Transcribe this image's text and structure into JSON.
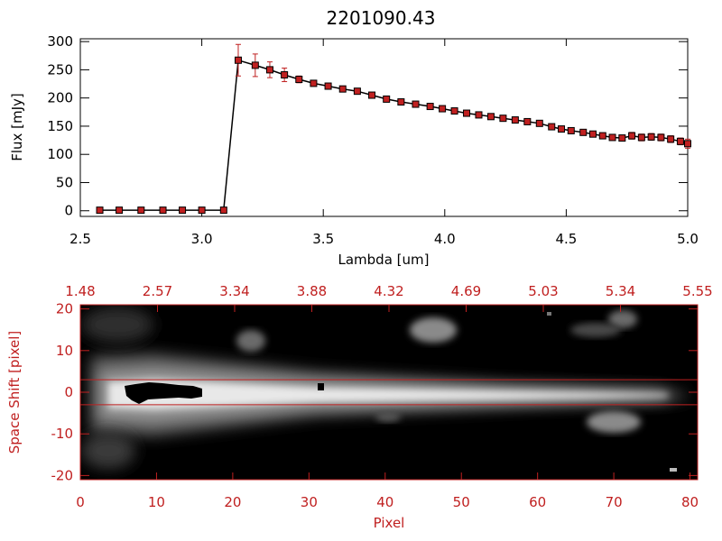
{
  "chart_data": [
    {
      "type": "line",
      "title": "2201090.43",
      "xlabel": "Lambda [um]",
      "ylabel": "Flux [mJy]",
      "xlim": [
        2.5,
        5.0
      ],
      "ylim": [
        -10,
        305
      ],
      "xticks": [
        "2.5",
        "3.0",
        "3.5",
        "4.0",
        "4.5",
        "5.0"
      ],
      "yticks": [
        "0",
        "50",
        "100",
        "150",
        "200",
        "250",
        "300"
      ],
      "x": [
        2.58,
        2.66,
        2.75,
        2.84,
        2.92,
        3.0,
        3.09,
        3.15,
        3.22,
        3.28,
        3.34,
        3.4,
        3.46,
        3.52,
        3.58,
        3.64,
        3.7,
        3.76,
        3.82,
        3.88,
        3.94,
        3.99,
        4.04,
        4.09,
        4.14,
        4.19,
        4.24,
        4.29,
        4.34,
        4.39,
        4.44,
        4.48,
        4.52,
        4.57,
        4.61,
        4.65,
        4.69,
        4.73,
        4.77,
        4.81,
        4.85,
        4.89,
        4.93,
        4.97,
        5.0
      ],
      "y": [
        1,
        1,
        1,
        1,
        1,
        1,
        1,
        267,
        258,
        250,
        241,
        233,
        226,
        221,
        216,
        212,
        205,
        198,
        193,
        189,
        185,
        181,
        177,
        173,
        170,
        167,
        164,
        161,
        158,
        155,
        149,
        145,
        142,
        139,
        136,
        133,
        130,
        129,
        133,
        130,
        131,
        130,
        127,
        123,
        119
      ],
      "yerr": [
        0,
        0,
        0,
        0,
        0,
        0,
        0,
        28,
        20,
        14,
        12,
        6,
        5,
        5,
        4,
        4,
        4,
        4,
        4,
        4,
        4,
        4,
        4,
        4,
        4,
        4,
        4,
        4,
        4,
        4,
        4,
        4,
        4,
        4,
        4,
        4,
        4,
        4,
        6,
        6,
        6,
        6,
        6,
        6,
        8
      ],
      "marker_color": "#c02020",
      "line_color": "#000000"
    },
    {
      "type": "heatmap",
      "xlabel": "Pixel",
      "ylabel": "Space Shift [pixel]",
      "xlim": [
        0,
        81
      ],
      "ylim": [
        -21,
        21
      ],
      "xticks": [
        "0",
        "10",
        "20",
        "30",
        "40",
        "50",
        "60",
        "70",
        "80"
      ],
      "yticks": [
        "-20",
        "-10",
        "0",
        "10",
        "20"
      ],
      "top_axis_ticks": [
        "1.48",
        "2.57",
        "3.34",
        "3.88",
        "4.32",
        "4.69",
        "5.03",
        "5.34",
        "5.55"
      ],
      "extraction_window": [
        -3,
        3
      ],
      "axis_color": "#c02020"
    }
  ]
}
